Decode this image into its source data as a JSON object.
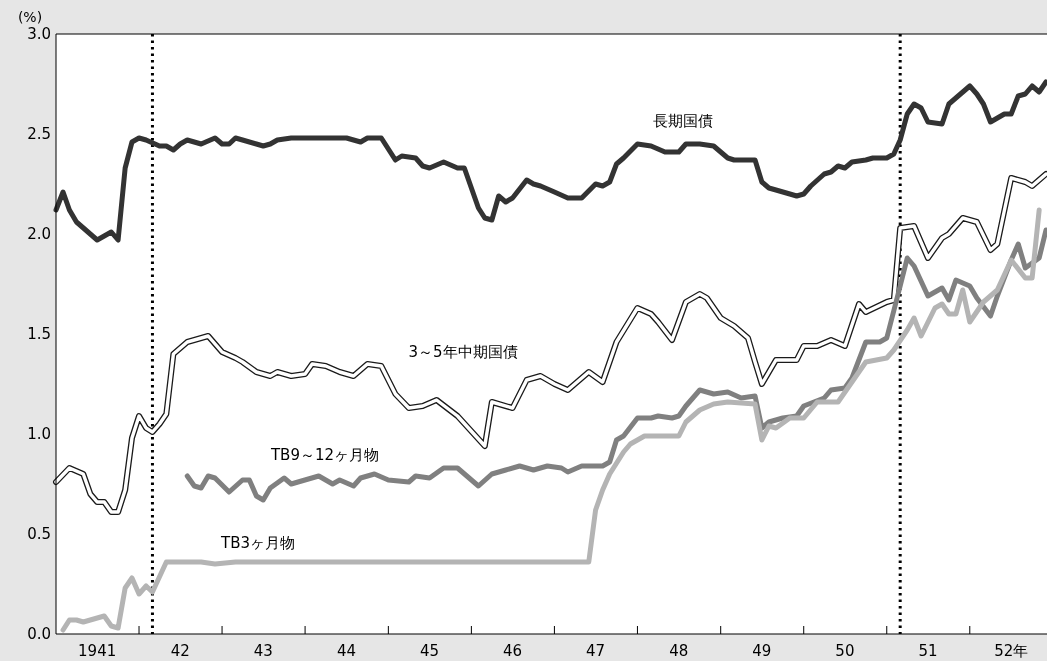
{
  "chart_data": {
    "type": "line",
    "ylabel": "(%)",
    "xlim": [
      "1941-01",
      "1952-12"
    ],
    "ylim": [
      0,
      3
    ],
    "yticks": [
      {
        "value": 0,
        "label": "0.0"
      },
      {
        "value": 0.5,
        "label": "0.5"
      },
      {
        "value": 1,
        "label": "1.0"
      },
      {
        "value": 1.5,
        "label": "1.5"
      },
      {
        "value": 2,
        "label": "2.0"
      },
      {
        "value": 2.5,
        "label": "2.5"
      },
      {
        "value": 3,
        "label": "3.0"
      }
    ],
    "xticks": [
      {
        "value": "1941-07",
        "label": "1941"
      },
      {
        "value": "1942-01",
        "label": null
      },
      {
        "value": "1942-07",
        "label": "42"
      },
      {
        "value": "1943-01",
        "label": null
      },
      {
        "value": "1943-07",
        "label": "43"
      },
      {
        "value": "1944-01",
        "label": null
      },
      {
        "value": "1944-07",
        "label": "44"
      },
      {
        "value": "1945-01",
        "label": null
      },
      {
        "value": "1945-07",
        "label": "45"
      },
      {
        "value": "1946-01",
        "label": null
      },
      {
        "value": "1946-07",
        "label": "46"
      },
      {
        "value": "1947-01",
        "label": null
      },
      {
        "value": "1947-07",
        "label": "47"
      },
      {
        "value": "1948-01",
        "label": null
      },
      {
        "value": "1948-07",
        "label": "48"
      },
      {
        "value": "1949-01",
        "label": null
      },
      {
        "value": "1949-07",
        "label": "49"
      },
      {
        "value": "1950-01",
        "label": null
      },
      {
        "value": "1950-07",
        "label": "50"
      },
      {
        "value": "1951-01",
        "label": null
      },
      {
        "value": "1951-07",
        "label": "51"
      },
      {
        "value": "1952-01",
        "label": null
      },
      {
        "value": "1952-07",
        "label": "52年"
      }
    ],
    "grid": false,
    "marker": "none",
    "line_style": "solid",
    "ref_lines": [
      {
        "axis": "x",
        "value": "1942-03",
        "line_style": "dotted",
        "color": "#000000"
      },
      {
        "axis": "x",
        "value": "1951-03",
        "line_style": "dotted",
        "color": "#000000"
      }
    ],
    "series": [
      {
        "name": "長期国債",
        "color": "#333333",
        "x": [
          "1941-01",
          "1941-02",
          "1941-03",
          "1941-04",
          "1941-07",
          "1941-09",
          "1941-10",
          "1941-11",
          "1941-12",
          "1942-01",
          "1942-02",
          "1942-04",
          "1942-05",
          "1942-06",
          "1942-07",
          "1942-08",
          "1942-10",
          "1942-12",
          "1943-01",
          "1943-02",
          "1943-03",
          "1943-04",
          "1943-06",
          "1943-07",
          "1943-08",
          "1943-09",
          "1943-11",
          "1944-01",
          "1944-03",
          "1944-05",
          "1944-07",
          "1944-09",
          "1944-10",
          "1944-12",
          "1945-02",
          "1945-03",
          "1945-05",
          "1945-06",
          "1945-07",
          "1945-09",
          "1945-11",
          "1945-12",
          "1946-02",
          "1946-03",
          "1946-04",
          "1946-05",
          "1946-06",
          "1946-07",
          "1946-09",
          "1946-10",
          "1946-11",
          "1947-01",
          "1947-03",
          "1947-05",
          "1947-07",
          "1947-08",
          "1947-09",
          "1947-10",
          "1947-11",
          "1948-01",
          "1948-03",
          "1948-05",
          "1948-07",
          "1948-08",
          "1948-10",
          "1948-12",
          "1949-02",
          "1949-03",
          "1949-06",
          "1949-07",
          "1949-08",
          "1949-09",
          "1949-11",
          "1949-12",
          "1950-01",
          "1950-02",
          "1950-04",
          "1950-05",
          "1950-06",
          "1950-07",
          "1950-08",
          "1950-10",
          "1950-11",
          "1951-01",
          "1951-02",
          "1951-03",
          "1951-04",
          "1951-05",
          "1951-06",
          "1951-07",
          "1951-09",
          "1951-10",
          "1952-01",
          "1952-02",
          "1952-03",
          "1952-04",
          "1952-06",
          "1952-07",
          "1952-08",
          "1952-09",
          "1952-10",
          "1952-11",
          "1952-12"
        ],
        "values": [
          2.12,
          2.21,
          2.12,
          2.06,
          1.97,
          2.01,
          1.97,
          2.33,
          2.46,
          2.48,
          2.47,
          2.44,
          2.44,
          2.42,
          2.45,
          2.47,
          2.45,
          2.48,
          2.45,
          2.45,
          2.48,
          2.47,
          2.45,
          2.44,
          2.45,
          2.47,
          2.48,
          2.48,
          2.48,
          2.48,
          2.48,
          2.46,
          2.48,
          2.48,
          2.37,
          2.39,
          2.38,
          2.34,
          2.33,
          2.36,
          2.33,
          2.33,
          2.13,
          2.08,
          2.07,
          2.19,
          2.16,
          2.18,
          2.27,
          2.25,
          2.24,
          2.21,
          2.18,
          2.18,
          2.25,
          2.24,
          2.26,
          2.35,
          2.38,
          2.45,
          2.44,
          2.41,
          2.41,
          2.45,
          2.45,
          2.44,
          2.38,
          2.37,
          2.37,
          2.26,
          2.23,
          2.22,
          2.2,
          2.19,
          2.2,
          2.24,
          2.3,
          2.31,
          2.34,
          2.33,
          2.36,
          2.37,
          2.38,
          2.38,
          2.4,
          2.47,
          2.6,
          2.65,
          2.63,
          2.56,
          2.55,
          2.65,
          2.74,
          2.7,
          2.65,
          2.56,
          2.6,
          2.6,
          2.69,
          2.7,
          2.74,
          2.71,
          2.76
        ]
      },
      {
        "name": "3～5年中期国債",
        "color": "#ffffff",
        "x": [
          "1941-01",
          "1941-03",
          "1941-05",
          "1941-06",
          "1941-07",
          "1941-08",
          "1941-09",
          "1941-10",
          "1941-11",
          "1941-12",
          "1942-01",
          "1942-02",
          "1942-03",
          "1942-04",
          "1942-05",
          "1942-06",
          "1942-08",
          "1942-09",
          "1942-11",
          "1943-01",
          "1943-03",
          "1943-04",
          "1943-06",
          "1943-08",
          "1943-09",
          "1943-11",
          "1944-01",
          "1944-02",
          "1944-04",
          "1944-06",
          "1944-08",
          "1944-10",
          "1944-12",
          "1945-02",
          "1945-04",
          "1945-06",
          "1945-08",
          "1945-11",
          "1946-03",
          "1946-04",
          "1946-07",
          "1946-09",
          "1946-11",
          "1947-01",
          "1947-03",
          "1947-06",
          "1947-08",
          "1947-10",
          "1948-01",
          "1948-03",
          "1948-04",
          "1948-06",
          "1948-08",
          "1948-10",
          "1948-11",
          "1949-01",
          "1949-03",
          "1949-05",
          "1949-06",
          "1949-07",
          "1949-08",
          "1949-09",
          "1949-12",
          "1950-01",
          "1950-03",
          "1950-05",
          "1950-07",
          "1950-09",
          "1950-10",
          "1951-01",
          "1951-02",
          "1951-03",
          "1951-05",
          "1951-07",
          "1951-09",
          "1951-10",
          "1951-12",
          "1952-02",
          "1952-04",
          "1952-05",
          "1952-07",
          "1952-09",
          "1952-10",
          "1952-12"
        ],
        "values": [
          0.76,
          0.83,
          0.8,
          0.7,
          0.66,
          0.66,
          0.61,
          0.61,
          0.72,
          0.98,
          1.09,
          1.03,
          1.01,
          1.05,
          1.1,
          1.4,
          1.46,
          1.47,
          1.49,
          1.41,
          1.38,
          1.36,
          1.31,
          1.29,
          1.31,
          1.29,
          1.3,
          1.35,
          1.34,
          1.31,
          1.29,
          1.35,
          1.34,
          1.2,
          1.13,
          1.14,
          1.17,
          1.09,
          0.94,
          1.16,
          1.13,
          1.27,
          1.29,
          1.25,
          1.22,
          1.31,
          1.26,
          1.46,
          1.63,
          1.6,
          1.56,
          1.47,
          1.66,
          1.7,
          1.68,
          1.58,
          1.54,
          1.48,
          1.36,
          1.25,
          1.31,
          1.37,
          1.37,
          1.44,
          1.44,
          1.47,
          1.44,
          1.65,
          1.61,
          1.66,
          1.67,
          2.03,
          2.04,
          1.88,
          1.98,
          2,
          2.08,
          2.06,
          1.92,
          1.95,
          2.28,
          2.26,
          2.24,
          2.3
        ]
      },
      {
        "name": "TB9～12ヶ月物",
        "color": "#808080",
        "x": [
          "1942-08",
          "1942-09",
          "1942-10",
          "1942-11",
          "1942-12",
          "1943-02",
          "1943-04",
          "1943-05",
          "1943-06",
          "1943-07",
          "1943-08",
          "1943-10",
          "1943-11",
          "1943-12",
          "1944-03",
          "1944-05",
          "1944-06",
          "1944-08",
          "1944-09",
          "1944-11",
          "1945-01",
          "1945-04",
          "1945-05",
          "1945-07",
          "1945-09",
          "1945-11",
          "1946-02",
          "1946-04",
          "1946-06",
          "1946-08",
          "1946-10",
          "1946-12",
          "1947-02",
          "1947-03",
          "1947-05",
          "1947-08",
          "1947-09",
          "1947-10",
          "1947-11",
          "1948-01",
          "1948-03",
          "1948-04",
          "1948-06",
          "1948-07",
          "1948-08",
          "1948-10",
          "1948-12",
          "1949-02",
          "1949-04",
          "1949-06",
          "1949-07",
          "1949-08",
          "1949-10",
          "1949-12",
          "1950-01",
          "1950-04",
          "1950-05",
          "1950-07",
          "1950-08",
          "1950-10",
          "1950-12",
          "1951-01",
          "1951-03",
          "1951-04",
          "1951-05",
          "1951-07",
          "1951-09",
          "1951-10",
          "1951-11",
          "1952-01",
          "1952-02",
          "1952-04",
          "1952-05",
          "1952-07",
          "1952-08",
          "1952-09",
          "1952-11",
          "1952-12"
        ],
        "values": [
          0.79,
          0.74,
          0.73,
          0.79,
          0.78,
          0.71,
          0.77,
          0.77,
          0.69,
          0.67,
          0.73,
          0.78,
          0.75,
          0.76,
          0.79,
          0.75,
          0.77,
          0.74,
          0.78,
          0.8,
          0.77,
          0.76,
          0.79,
          0.78,
          0.83,
          0.83,
          0.74,
          0.8,
          0.82,
          0.84,
          0.82,
          0.84,
          0.83,
          0.81,
          0.84,
          0.84,
          0.86,
          0.97,
          0.99,
          1.08,
          1.08,
          1.09,
          1.08,
          1.09,
          1.14,
          1.22,
          1.2,
          1.21,
          1.18,
          1.19,
          1.03,
          1.06,
          1.08,
          1.09,
          1.14,
          1.18,
          1.22,
          1.23,
          1.28,
          1.46,
          1.46,
          1.48,
          1.74,
          1.88,
          1.84,
          1.69,
          1.73,
          1.67,
          1.77,
          1.74,
          1.68,
          1.59,
          1.69,
          1.87,
          1.95,
          1.83,
          1.88,
          2.02
        ]
      },
      {
        "name": "TB3ヶ月物",
        "color": "#b4b4b4",
        "x": [
          "1941-02",
          "1941-03",
          "1941-04",
          "1941-05",
          "1941-08",
          "1941-09",
          "1941-10",
          "1941-11",
          "1941-12",
          "1942-01",
          "1942-02",
          "1942-03",
          "1942-05",
          "1942-08",
          "1942-10",
          "1942-12",
          "1943-03",
          "1947-06",
          "1947-07",
          "1947-08",
          "1947-09",
          "1947-11",
          "1947-12",
          "1948-02",
          "1948-07",
          "1948-08",
          "1948-10",
          "1948-12",
          "1949-02",
          "1949-06",
          "1949-07",
          "1949-08",
          "1949-09",
          "1949-11",
          "1950-01",
          "1950-03",
          "1950-06",
          "1950-08",
          "1950-10",
          "1951-01",
          "1951-02",
          "1951-04",
          "1951-05",
          "1951-06",
          "1951-08",
          "1951-09",
          "1951-10",
          "1951-11",
          "1951-12",
          "1952-01",
          "1952-03",
          "1952-05",
          "1952-07",
          "1952-09",
          "1952-10",
          "1952-11"
        ],
        "values": [
          0.02,
          0.07,
          0.07,
          0.06,
          0.09,
          0.04,
          0.03,
          0.23,
          0.28,
          0.2,
          0.24,
          0.21,
          0.36,
          0.36,
          0.36,
          0.35,
          0.36,
          0.36,
          0.62,
          0.72,
          0.8,
          0.91,
          0.95,
          0.99,
          0.99,
          1.06,
          1.12,
          1.15,
          1.16,
          1.15,
          0.97,
          1.04,
          1.03,
          1.08,
          1.08,
          1.16,
          1.16,
          1.26,
          1.36,
          1.38,
          1.42,
          1.52,
          1.58,
          1.49,
          1.63,
          1.65,
          1.6,
          1.6,
          1.72,
          1.56,
          1.66,
          1.72,
          1.87,
          1.78,
          1.78,
          2.12
        ]
      }
    ]
  }
}
